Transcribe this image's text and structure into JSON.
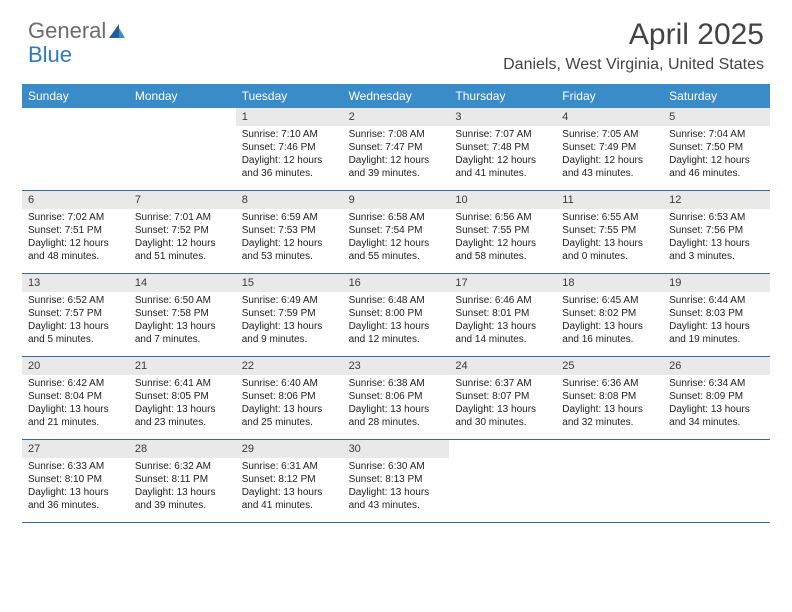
{
  "brand": {
    "part1": "General",
    "part2": "Blue"
  },
  "title": "April 2025",
  "location": "Daniels, West Virginia, United States",
  "colors": {
    "header_bg": "#3a8cc9",
    "header_text": "#ffffff",
    "week_border": "#3a6a9a",
    "daynum_bg": "#e9e9e9",
    "body_text": "#222222",
    "brand_grey": "#6b6b6b",
    "brand_blue": "#2f7bbf"
  },
  "day_headers": [
    "Sunday",
    "Monday",
    "Tuesday",
    "Wednesday",
    "Thursday",
    "Friday",
    "Saturday"
  ],
  "weeks": [
    [
      {
        "day": "",
        "sunrise": "",
        "sunset": "",
        "daylight": ""
      },
      {
        "day": "",
        "sunrise": "",
        "sunset": "",
        "daylight": ""
      },
      {
        "day": "1",
        "sunrise": "Sunrise: 7:10 AM",
        "sunset": "Sunset: 7:46 PM",
        "daylight": "Daylight: 12 hours and 36 minutes."
      },
      {
        "day": "2",
        "sunrise": "Sunrise: 7:08 AM",
        "sunset": "Sunset: 7:47 PM",
        "daylight": "Daylight: 12 hours and 39 minutes."
      },
      {
        "day": "3",
        "sunrise": "Sunrise: 7:07 AM",
        "sunset": "Sunset: 7:48 PM",
        "daylight": "Daylight: 12 hours and 41 minutes."
      },
      {
        "day": "4",
        "sunrise": "Sunrise: 7:05 AM",
        "sunset": "Sunset: 7:49 PM",
        "daylight": "Daylight: 12 hours and 43 minutes."
      },
      {
        "day": "5",
        "sunrise": "Sunrise: 7:04 AM",
        "sunset": "Sunset: 7:50 PM",
        "daylight": "Daylight: 12 hours and 46 minutes."
      }
    ],
    [
      {
        "day": "6",
        "sunrise": "Sunrise: 7:02 AM",
        "sunset": "Sunset: 7:51 PM",
        "daylight": "Daylight: 12 hours and 48 minutes."
      },
      {
        "day": "7",
        "sunrise": "Sunrise: 7:01 AM",
        "sunset": "Sunset: 7:52 PM",
        "daylight": "Daylight: 12 hours and 51 minutes."
      },
      {
        "day": "8",
        "sunrise": "Sunrise: 6:59 AM",
        "sunset": "Sunset: 7:53 PM",
        "daylight": "Daylight: 12 hours and 53 minutes."
      },
      {
        "day": "9",
        "sunrise": "Sunrise: 6:58 AM",
        "sunset": "Sunset: 7:54 PM",
        "daylight": "Daylight: 12 hours and 55 minutes."
      },
      {
        "day": "10",
        "sunrise": "Sunrise: 6:56 AM",
        "sunset": "Sunset: 7:55 PM",
        "daylight": "Daylight: 12 hours and 58 minutes."
      },
      {
        "day": "11",
        "sunrise": "Sunrise: 6:55 AM",
        "sunset": "Sunset: 7:55 PM",
        "daylight": "Daylight: 13 hours and 0 minutes."
      },
      {
        "day": "12",
        "sunrise": "Sunrise: 6:53 AM",
        "sunset": "Sunset: 7:56 PM",
        "daylight": "Daylight: 13 hours and 3 minutes."
      }
    ],
    [
      {
        "day": "13",
        "sunrise": "Sunrise: 6:52 AM",
        "sunset": "Sunset: 7:57 PM",
        "daylight": "Daylight: 13 hours and 5 minutes."
      },
      {
        "day": "14",
        "sunrise": "Sunrise: 6:50 AM",
        "sunset": "Sunset: 7:58 PM",
        "daylight": "Daylight: 13 hours and 7 minutes."
      },
      {
        "day": "15",
        "sunrise": "Sunrise: 6:49 AM",
        "sunset": "Sunset: 7:59 PM",
        "daylight": "Daylight: 13 hours and 9 minutes."
      },
      {
        "day": "16",
        "sunrise": "Sunrise: 6:48 AM",
        "sunset": "Sunset: 8:00 PM",
        "daylight": "Daylight: 13 hours and 12 minutes."
      },
      {
        "day": "17",
        "sunrise": "Sunrise: 6:46 AM",
        "sunset": "Sunset: 8:01 PM",
        "daylight": "Daylight: 13 hours and 14 minutes."
      },
      {
        "day": "18",
        "sunrise": "Sunrise: 6:45 AM",
        "sunset": "Sunset: 8:02 PM",
        "daylight": "Daylight: 13 hours and 16 minutes."
      },
      {
        "day": "19",
        "sunrise": "Sunrise: 6:44 AM",
        "sunset": "Sunset: 8:03 PM",
        "daylight": "Daylight: 13 hours and 19 minutes."
      }
    ],
    [
      {
        "day": "20",
        "sunrise": "Sunrise: 6:42 AM",
        "sunset": "Sunset: 8:04 PM",
        "daylight": "Daylight: 13 hours and 21 minutes."
      },
      {
        "day": "21",
        "sunrise": "Sunrise: 6:41 AM",
        "sunset": "Sunset: 8:05 PM",
        "daylight": "Daylight: 13 hours and 23 minutes."
      },
      {
        "day": "22",
        "sunrise": "Sunrise: 6:40 AM",
        "sunset": "Sunset: 8:06 PM",
        "daylight": "Daylight: 13 hours and 25 minutes."
      },
      {
        "day": "23",
        "sunrise": "Sunrise: 6:38 AM",
        "sunset": "Sunset: 8:06 PM",
        "daylight": "Daylight: 13 hours and 28 minutes."
      },
      {
        "day": "24",
        "sunrise": "Sunrise: 6:37 AM",
        "sunset": "Sunset: 8:07 PM",
        "daylight": "Daylight: 13 hours and 30 minutes."
      },
      {
        "day": "25",
        "sunrise": "Sunrise: 6:36 AM",
        "sunset": "Sunset: 8:08 PM",
        "daylight": "Daylight: 13 hours and 32 minutes."
      },
      {
        "day": "26",
        "sunrise": "Sunrise: 6:34 AM",
        "sunset": "Sunset: 8:09 PM",
        "daylight": "Daylight: 13 hours and 34 minutes."
      }
    ],
    [
      {
        "day": "27",
        "sunrise": "Sunrise: 6:33 AM",
        "sunset": "Sunset: 8:10 PM",
        "daylight": "Daylight: 13 hours and 36 minutes."
      },
      {
        "day": "28",
        "sunrise": "Sunrise: 6:32 AM",
        "sunset": "Sunset: 8:11 PM",
        "daylight": "Daylight: 13 hours and 39 minutes."
      },
      {
        "day": "29",
        "sunrise": "Sunrise: 6:31 AM",
        "sunset": "Sunset: 8:12 PM",
        "daylight": "Daylight: 13 hours and 41 minutes."
      },
      {
        "day": "30",
        "sunrise": "Sunrise: 6:30 AM",
        "sunset": "Sunset: 8:13 PM",
        "daylight": "Daylight: 13 hours and 43 minutes."
      },
      {
        "day": "",
        "sunrise": "",
        "sunset": "",
        "daylight": ""
      },
      {
        "day": "",
        "sunrise": "",
        "sunset": "",
        "daylight": ""
      },
      {
        "day": "",
        "sunrise": "",
        "sunset": "",
        "daylight": ""
      }
    ]
  ]
}
